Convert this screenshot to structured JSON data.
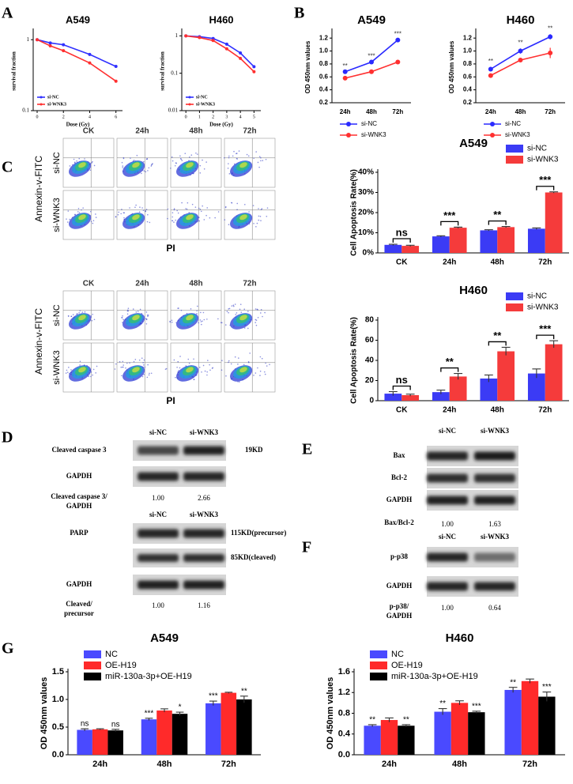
{
  "panel_labels": [
    "A",
    "B",
    "C",
    "D",
    "E",
    "F",
    "G"
  ],
  "chart_data": [
    {
      "type": "line",
      "title": "A549",
      "x_label": "Dose (Gy)",
      "y_label": "survival fraction",
      "x": [
        0,
        1,
        2,
        4,
        6
      ],
      "xlim": [
        -0.3,
        6.5
      ],
      "xticks": [
        0,
        2,
        4,
        6
      ],
      "log_y": true,
      "ylim": [
        0.1,
        1.3
      ],
      "yticks": [
        1,
        0.1
      ],
      "legend": "lower-left",
      "series": [
        {
          "name": "si-NC",
          "color": "#3030ff",
          "values": [
            1,
            0.9,
            0.85,
            0.62,
            0.42
          ]
        },
        {
          "name": "si-WNK3",
          "color": "#ff3030",
          "values": [
            1,
            0.82,
            0.7,
            0.47,
            0.26
          ]
        }
      ]
    },
    {
      "type": "line",
      "title": "H460",
      "x_label": "Dose (Gy)",
      "y_label": "survival fraction",
      "x": [
        0,
        1,
        2,
        3,
        4,
        5
      ],
      "xlim": [
        -0.3,
        5.5
      ],
      "xticks": [
        0,
        1,
        2,
        3,
        4,
        5
      ],
      "log_y": true,
      "ylim": [
        0.01,
        1.3
      ],
      "yticks": [
        1,
        0.1,
        0.01
      ],
      "legend": "lower-left",
      "series": [
        {
          "name": "si-NC",
          "color": "#3030ff",
          "values": [
            1,
            0.95,
            0.85,
            0.6,
            0.35,
            0.15
          ]
        },
        {
          "name": "si-WNK3",
          "color": "#ff3030",
          "values": [
            1,
            0.9,
            0.75,
            0.45,
            0.25,
            0.11
          ]
        }
      ]
    },
    {
      "type": "line",
      "title": "A549",
      "y_label": "OD 450nm values",
      "categories": [
        "24h",
        "48h",
        "72h"
      ],
      "ylim": [
        0.2,
        1.3
      ],
      "yticks": [
        0.2,
        0.4,
        0.6,
        0.8,
        {
          "value": 1,
          "label": "1.0"
        },
        1.2
      ],
      "legend": "bottom",
      "series": [
        {
          "name": "si-NC",
          "color": "#2a2aff",
          "values": [
            0.68,
            0.83,
            1.17
          ],
          "annotations": [
            "**",
            "***",
            "***"
          ]
        },
        {
          "name": "si-WNK3",
          "color": "#ff3030",
          "values": [
            0.58,
            0.68,
            0.83
          ]
        }
      ]
    },
    {
      "type": "line",
      "title": "H460",
      "y_label": "OD 450nm values",
      "categories": [
        "24h",
        "48h",
        "72h"
      ],
      "ylim": [
        0.2,
        1.3
      ],
      "yticks": [
        0.2,
        0.4,
        0.6,
        0.8,
        {
          "value": 1,
          "label": "1.0"
        },
        1.2
      ],
      "legend": "bottom",
      "series": [
        {
          "name": "si-NC",
          "color": "#2a2aff",
          "values": [
            0.72,
            1.0,
            1.22
          ],
          "errors": [
            0.03,
            0.04,
            0.04
          ],
          "annotations": [
            "**",
            "**",
            "**"
          ]
        },
        {
          "name": "si-WNK3",
          "color": "#ff3030",
          "values": [
            0.62,
            0.86,
            0.97
          ],
          "errors": [
            0.03,
            0.03,
            0.08
          ]
        }
      ]
    },
    {
      "type": "bar",
      "title": "A549",
      "y_label": "Cell Apoptosis Rate(%)",
      "categories": [
        "CK",
        "24h",
        "48h",
        "72h"
      ],
      "ylim": [
        0,
        40
      ],
      "yticks": [
        {
          "value": 0,
          "label": "0%"
        },
        {
          "value": 10,
          "label": "10%"
        },
        {
          "value": 20,
          "label": "20%"
        },
        {
          "value": 30,
          "label": "30%"
        },
        {
          "value": 40,
          "label": "40%"
        }
      ],
      "legend": "top-right",
      "significance": [
        "ns",
        "***",
        "**",
        "***"
      ],
      "series": [
        {
          "name": "si-NC",
          "color": "#3b3bf5",
          "values": [
            4.0,
            8.2,
            11.2,
            12.0
          ],
          "errors": [
            0.3,
            0.3,
            0.3,
            0.4
          ]
        },
        {
          "name": "si-WNK3",
          "color": "#f53b3b",
          "values": [
            3.5,
            12.5,
            12.8,
            30.0
          ],
          "errors": [
            0.3,
            0.3,
            0.3,
            0.3
          ]
        }
      ]
    },
    {
      "type": "bar",
      "title": "H460",
      "y_label": "Cell Apoptosis Rate(%)",
      "categories": [
        "CK",
        "24h",
        "48h",
        "72h"
      ],
      "ylim": [
        0,
        80
      ],
      "yticks": [
        0,
        20,
        40,
        60,
        80
      ],
      "legend": "top-right",
      "significance": [
        "ns",
        "**",
        "**",
        "***"
      ],
      "series": [
        {
          "name": "si-NC",
          "color": "#3b3bf5",
          "values": [
            7,
            8.5,
            22,
            27
          ],
          "errors": [
            2,
            2,
            3.5,
            4.5
          ]
        },
        {
          "name": "si-WNK3",
          "color": "#f53b3b",
          "values": [
            5.5,
            24,
            49,
            56
          ],
          "errors": [
            1,
            3,
            4,
            3.5
          ]
        }
      ]
    },
    {
      "type": "bar",
      "title": "A549",
      "y_label": "OD 450nm values",
      "categories": [
        "24h",
        "48h",
        "72h"
      ],
      "ylim": [
        0,
        1.5
      ],
      "yticks": [
        {
          "value": 0,
          "label": "0.0"
        },
        0.5,
        {
          "value": 1,
          "label": "1.0"
        },
        1.5
      ],
      "legend": "top-left",
      "series": [
        {
          "name": "NC",
          "color": "#4a4aff",
          "values": [
            0.45,
            0.64,
            0.93
          ],
          "errors": [
            0.02,
            0.02,
            0.04
          ],
          "annotations": [
            "ns",
            "***",
            "***"
          ]
        },
        {
          "name": "OE-H19",
          "color": "#ff2a2a",
          "values": [
            0.46,
            0.8,
            1.12
          ],
          "errors": [
            0.01,
            0.03,
            0.01
          ],
          "annotations": [
            null,
            null,
            null
          ]
        },
        {
          "name": "miR-130a-3p+OE-H19",
          "color": "#000000",
          "values": [
            0.44,
            0.74,
            1.0
          ],
          "errors": [
            0.02,
            0.03,
            0.06
          ],
          "annotations": [
            "ns",
            "*",
            "**"
          ]
        }
      ]
    },
    {
      "type": "bar",
      "title": "H460",
      "y_label": "OD 450nm values",
      "categories": [
        "24h",
        "48h",
        "72h"
      ],
      "ylim": [
        0,
        1.6
      ],
      "yticks": [
        {
          "value": 0,
          "label": "0.0"
        },
        0.4,
        0.8,
        1.2,
        1.6
      ],
      "legend": "top-left",
      "series": [
        {
          "name": "NC",
          "color": "#4a4aff",
          "values": [
            0.56,
            0.83,
            1.25
          ],
          "errors": [
            0.02,
            0.06,
            0.05
          ],
          "annotations": [
            "**",
            "**",
            "**"
          ]
        },
        {
          "name": "OE-H19",
          "color": "#ff2a2a",
          "values": [
            0.67,
            1.0,
            1.42
          ],
          "errors": [
            0.04,
            0.04,
            0.04
          ],
          "annotations": [
            null,
            null,
            null
          ]
        },
        {
          "name": "miR-130a-3p+OE-H19",
          "color": "#000000",
          "values": [
            0.56,
            0.82,
            1.12
          ],
          "errors": [
            0.02,
            0.02,
            0.09
          ],
          "annotations": [
            "**",
            "***",
            "***"
          ]
        }
      ]
    }
  ],
  "flow_cytometry": [
    {
      "columns": [
        "CK",
        "24h",
        "48h",
        "72h"
      ],
      "rows": [
        "si-NC",
        "si-WNK3"
      ],
      "y_label": "Annexin-v-FITC",
      "x_label": "PI"
    },
    {
      "columns": [
        "CK",
        "24h",
        "48h",
        "72h"
      ],
      "rows": [
        "si-NC",
        "si-WNK3"
      ],
      "y_label": "Annexin-v-FITC",
      "x_label": "PI"
    }
  ],
  "blots": {
    "D1": {
      "columns": [
        "si-NC",
        "si-WNK3"
      ],
      "rows": [
        "Cleaved caspase 3",
        "GAPDH"
      ],
      "sizes": [
        "19KD"
      ],
      "ratio_label": [
        "Cleaved caspase 3/",
        "GAPDH"
      ],
      "ratios": [
        "1.00",
        "2.66"
      ]
    },
    "D2": {
      "columns": [
        "si-NC",
        "si-WNK3"
      ],
      "rows": [
        "PARP",
        "GAPDH"
      ],
      "sizes": [
        "115KD(precursor)",
        "85KD(cleaved)"
      ],
      "ratio_label": [
        "Cleaved/",
        "precursor"
      ],
      "ratios": [
        "1.00",
        "1.16"
      ]
    },
    "E": {
      "columns": [
        "si-NC",
        "si-WNK3"
      ],
      "rows": [
        "Bax",
        "Bcl-2",
        "GAPDH"
      ],
      "ratio_label": [
        "Bax/Bcl-2"
      ],
      "ratios": [
        "1.00",
        "1.63"
      ]
    },
    "F": {
      "columns": [
        "si-NC",
        "si-WNK3"
      ],
      "rows": [
        "p-p38",
        "GAPDH"
      ],
      "ratio_label": [
        "p-p38/",
        "GAPDH"
      ],
      "ratios": [
        "1.00",
        "0.64"
      ]
    }
  }
}
